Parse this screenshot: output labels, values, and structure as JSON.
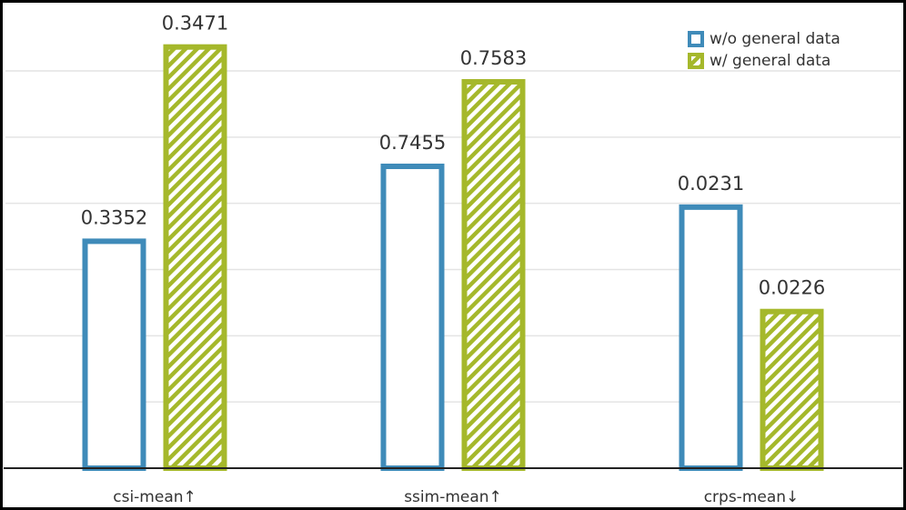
{
  "chart_data": {
    "type": "bar",
    "categories": [
      "csi-mean↑",
      "ssim-mean↑",
      "crps-mean↓"
    ],
    "series": [
      {
        "name": "w/o general data",
        "color": "#3f8bb9",
        "values": [
          0.3352,
          0.7455,
          0.0231
        ]
      },
      {
        "name": "w/ general data",
        "color": "#a5b82b",
        "values": [
          0.3471,
          0.7583,
          0.0226
        ]
      }
    ],
    "group_ylims": [
      [
        0.3213,
        0.3497
      ],
      [
        0.6998,
        0.77
      ],
      [
        0.02185,
        0.02407
      ]
    ],
    "grid": true
  }
}
